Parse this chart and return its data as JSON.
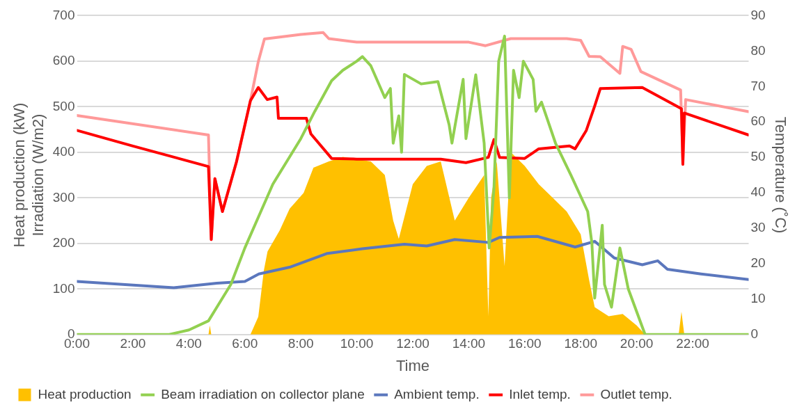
{
  "chart_data": {
    "type": "line",
    "xlabel": "Time",
    "ylabel": "Heat production (kW)\nIrradiation (W/m2)",
    "y2label": "Temperature (˚C)",
    "xlim": [
      0,
      24
    ],
    "xticks": [
      {
        "value": 0,
        "label": "0:00"
      },
      {
        "value": 2,
        "label": "2:00"
      },
      {
        "value": 4,
        "label": "4:00"
      },
      {
        "value": 6,
        "label": "6:00"
      },
      {
        "value": 8,
        "label": "8:00"
      },
      {
        "value": 10,
        "label": "10:00"
      },
      {
        "value": 12,
        "label": "12:00"
      },
      {
        "value": 14,
        "label": "14:00"
      },
      {
        "value": 16,
        "label": "16:00"
      },
      {
        "value": 18,
        "label": "18:00"
      },
      {
        "value": 20,
        "label": "20:00"
      },
      {
        "value": 22,
        "label": "22:00"
      }
    ],
    "ylim": [
      0,
      700
    ],
    "yticks": [
      0,
      100,
      200,
      300,
      400,
      500,
      600,
      700
    ],
    "y2lim": [
      0,
      90
    ],
    "y2ticks": [
      0,
      10,
      20,
      30,
      40,
      50,
      60,
      70,
      80,
      90
    ],
    "grid": "y",
    "legend": "bottom",
    "marker": "none",
    "series": [
      {
        "name": "Heat production",
        "type": "area",
        "color": "#ffc000",
        "x": [
          0,
          4.7,
          4.75,
          4.8,
          6.2,
          6.48,
          6.68,
          6.81,
          7.25,
          7.6,
          8.1,
          8.45,
          9,
          9.5,
          10,
          10.5,
          11,
          11.3,
          11.5,
          12,
          12.5,
          13,
          13.5,
          14,
          14.55,
          14.7,
          14.8,
          15,
          15.28,
          15.5,
          16,
          16.5,
          17,
          17.5,
          18,
          18.3,
          18.5,
          19,
          19.5,
          20,
          20.3,
          21.5,
          21.6,
          21.7,
          24
        ],
        "values": [
          0,
          0,
          20,
          0,
          0,
          39,
          141,
          182,
          229,
          276,
          311,
          366,
          380,
          390,
          385,
          380,
          350,
          250,
          210,
          330,
          370,
          380,
          250,
          300,
          350,
          40,
          300,
          380,
          150,
          400,
          370,
          330,
          300,
          270,
          220,
          120,
          60,
          40,
          45,
          20,
          0,
          0,
          50,
          0,
          0
        ]
      },
      {
        "name": "Beam irradiation on collector plane",
        "color": "#92d050",
        "x": [
          0,
          3.3,
          4,
          4.7,
          5,
          5.5,
          6,
          6.5,
          7,
          7.5,
          8,
          8.5,
          9.1,
          9.5,
          10,
          10.2,
          10.5,
          11,
          11.2,
          11.3,
          11.5,
          11.6,
          11.7,
          12.3,
          12.9,
          13.3,
          13.4,
          13.8,
          13.9,
          14.25,
          14.55,
          14.73,
          14.9,
          15.07,
          15.28,
          15.45,
          15.6,
          15.8,
          15.95,
          16.3,
          16.4,
          16.6,
          17.1,
          17.65,
          18.25,
          18.4,
          18.5,
          18.77,
          18.85,
          19.1,
          19.4,
          19.7,
          20,
          20.3,
          24
        ],
        "values": [
          0,
          0,
          10,
          30,
          60,
          110,
          190,
          260,
          330,
          380,
          430,
          490,
          557,
          580,
          600,
          610,
          590,
          520,
          540,
          420,
          480,
          400,
          571,
          550,
          555,
          460,
          420,
          560,
          430,
          570,
          420,
          190,
          320,
          600,
          655,
          300,
          580,
          520,
          600,
          560,
          490,
          510,
          420,
          350,
          270,
          200,
          80,
          240,
          110,
          60,
          190,
          100,
          50,
          0,
          0
        ]
      },
      {
        "name": "Ambient temp.",
        "color": "#5b77bd",
        "axis": "y2",
        "x": [
          0,
          3.46,
          5,
          6,
          6.5,
          7.6,
          8.95,
          10.2,
          11.7,
          12.5,
          13.5,
          14.7,
          15.1,
          16.45,
          17.8,
          18.5,
          19.2,
          20.2,
          20.75,
          21.1,
          22.3,
          24
        ],
        "values": [
          15,
          13.2,
          14.5,
          15,
          17.1,
          19,
          22.9,
          24.2,
          25.5,
          25,
          26.8,
          26,
          27.4,
          27.7,
          24.7,
          26.3,
          21.6,
          19.7,
          20.8,
          18.4,
          17.1,
          15.5
        ]
      },
      {
        "name": "Inlet temp.",
        "color": "#ff0000",
        "axis": "y2",
        "x": [
          0,
          2,
          4.7,
          4.8,
          4.93,
          5.2,
          5.7,
          6.2,
          6.48,
          6.8,
          7.15,
          7.2,
          8.2,
          8.36,
          9.1,
          10,
          11,
          12,
          13,
          13.9,
          14.7,
          14.9,
          15.1,
          16,
          16.5,
          17.6,
          17.8,
          18.2,
          18.5,
          18.7,
          20.2,
          21.6,
          21.65,
          21.7,
          24
        ],
        "values": [
          57.6,
          53.2,
          47.4,
          26.8,
          44,
          34.7,
          48.7,
          66,
          69.7,
          66.3,
          67,
          61,
          61,
          56.6,
          49.7,
          49.5,
          49.5,
          49.5,
          49.5,
          48.5,
          50,
          55,
          50,
          49.7,
          52.4,
          53.2,
          52.4,
          57.6,
          64.5,
          69.4,
          69.7,
          63.7,
          48,
          62.5,
          56.3
        ]
      },
      {
        "name": "Outlet temp.",
        "color": "#ff9999",
        "axis": "y2",
        "x": [
          0,
          4.7,
          4.8,
          4.93,
          5.2,
          5.7,
          6.2,
          6.48,
          6.7,
          8,
          8.8,
          9,
          10,
          12,
          14,
          14.6,
          15.5,
          17.5,
          18,
          18.3,
          18.7,
          19.4,
          19.5,
          19.8,
          20.15,
          21.57,
          21.65,
          21.75,
          24
        ],
        "values": [
          61.8,
          56.3,
          26.8,
          44,
          34.7,
          48.7,
          66,
          77,
          83.4,
          84.7,
          85.2,
          83.5,
          82.5,
          82.5,
          82.5,
          81.5,
          83.5,
          83.5,
          83,
          78.5,
          78.4,
          73.7,
          81.3,
          80.5,
          74.2,
          69,
          48.7,
          66.3,
          62.9
        ]
      }
    ]
  }
}
